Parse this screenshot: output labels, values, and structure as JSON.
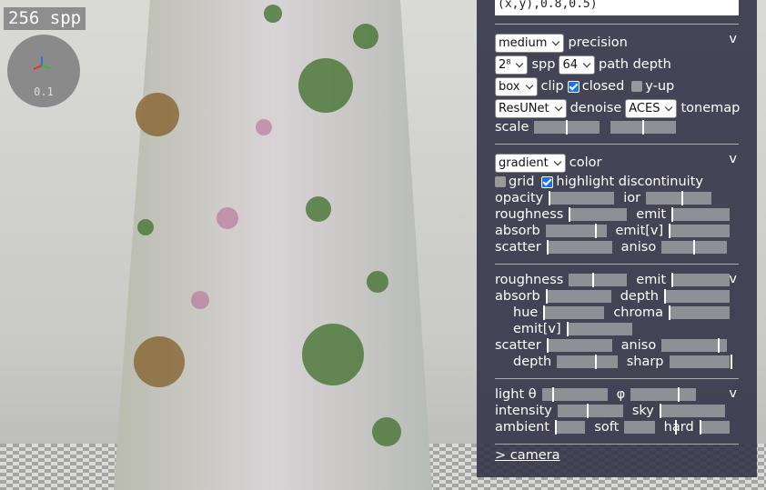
{
  "overlay": {
    "spp_badge": "256 spp",
    "gizmo_label": 0.1
  },
  "panel": {
    "expression_tail": "(x,y),0.8,0.5)",
    "sections": [
      {
        "toggle": "v",
        "rows": [
          {
            "items": [
              {
                "kind": "select",
                "value": "medium"
              },
              {
                "kind": "label",
                "text": "precision"
              }
            ]
          },
          {
            "items": [
              {
                "kind": "select",
                "value": "2⁸"
              },
              {
                "kind": "label",
                "text": "spp"
              },
              {
                "kind": "select",
                "value": 64
              },
              {
                "kind": "label",
                "text": "path depth"
              }
            ]
          },
          {
            "items": [
              {
                "kind": "select",
                "value": "box"
              },
              {
                "kind": "label",
                "text": "clip"
              },
              {
                "kind": "check",
                "checked": true,
                "text": "closed"
              },
              {
                "kind": "check",
                "checked": false,
                "text": "y-up"
              }
            ]
          },
          {
            "items": [
              {
                "kind": "select",
                "value": "ResUNet"
              },
              {
                "kind": "label",
                "text": "denoise"
              },
              {
                "kind": "select",
                "value": "ACES"
              },
              {
                "kind": "label",
                "text": "tonemap"
              }
            ]
          },
          {
            "items": [
              {
                "kind": "label",
                "text": "scale"
              },
              {
                "kind": "slider",
                "value": 0.5
              },
              {
                "kind": "slider",
                "value": 0.5
              }
            ]
          }
        ]
      },
      {
        "toggle": "v",
        "rows": [
          {
            "items": [
              {
                "kind": "select",
                "value": "gradient"
              },
              {
                "kind": "label",
                "text": "color"
              }
            ]
          },
          {
            "items": [
              {
                "kind": "check",
                "checked": false,
                "text": "grid"
              },
              {
                "kind": "check",
                "checked": true,
                "text": "highlight discontinuity"
              }
            ]
          },
          {
            "items": [
              {
                "kind": "label",
                "text": "opacity"
              },
              {
                "kind": "slider",
                "value": 0
              },
              {
                "kind": "label",
                "text": "ior"
              },
              {
                "kind": "slider",
                "value": 0.56
              }
            ]
          },
          {
            "items": [
              {
                "kind": "label",
                "text": "roughness"
              },
              {
                "kind": "slider",
                "value": 0
              },
              {
                "kind": "label",
                "text": "emit"
              },
              {
                "kind": "slider",
                "value": 0
              }
            ]
          },
          {
            "items": [
              {
                "kind": "label",
                "text": "absorb"
              },
              {
                "kind": "slider",
                "value": 0.78
              },
              {
                "kind": "label",
                "text": "emit[v]"
              },
              {
                "kind": "slider",
                "value": 0
              }
            ]
          },
          {
            "items": [
              {
                "kind": "label",
                "text": "scatter"
              },
              {
                "kind": "slider",
                "value": 0
              },
              {
                "kind": "label",
                "text": "aniso"
              },
              {
                "kind": "slider",
                "value": 0.5
              }
            ]
          }
        ]
      },
      {
        "toggle": "v",
        "rows": [
          {
            "items": [
              {
                "kind": "label",
                "text": "roughness"
              },
              {
                "kind": "slider",
                "value": 0.36
              },
              {
                "kind": "label",
                "text": "emit"
              },
              {
                "kind": "slider",
                "value": 0
              }
            ]
          },
          {
            "items": [
              {
                "kind": "label",
                "text": "absorb"
              },
              {
                "kind": "slider",
                "value": 0
              },
              {
                "kind": "label",
                "text": "depth"
              },
              {
                "kind": "slider",
                "value": 0
              }
            ]
          },
          {
            "indent": true,
            "items": [
              {
                "kind": "label",
                "text": "hue"
              },
              {
                "kind": "slider",
                "value": 0
              },
              {
                "kind": "label",
                "text": "chroma"
              },
              {
                "kind": "slider",
                "value": 0
              }
            ]
          },
          {
            "indent": true,
            "items": [
              {
                "kind": "label",
                "text": "emit[v]"
              },
              {
                "kind": "slider",
                "value": 0
              }
            ]
          },
          {
            "items": [
              {
                "kind": "label",
                "text": "scatter"
              },
              {
                "kind": "slider",
                "value": 0
              },
              {
                "kind": "label",
                "text": "aniso"
              },
              {
                "kind": "slider",
                "value": 0.88
              }
            ]
          },
          {
            "indent": true,
            "items": [
              {
                "kind": "label",
                "text": "depth"
              },
              {
                "kind": "slider",
                "value": 0.6
              },
              {
                "kind": "label",
                "text": "sharp"
              },
              {
                "kind": "slider",
                "value": 0.97
              }
            ]
          }
        ]
      },
      {
        "toggle": "v",
        "rows": [
          {
            "items": [
              {
                "kind": "label",
                "text": "light θ"
              },
              {
                "kind": "slider",
                "value": 0.16
              },
              {
                "kind": "label",
                "text": "φ"
              },
              {
                "kind": "slider",
                "value": 0.74
              }
            ]
          },
          {
            "items": [
              {
                "kind": "label",
                "text": "intensity"
              },
              {
                "kind": "slider",
                "value": 0.46
              },
              {
                "kind": "label",
                "text": "sky"
              },
              {
                "kind": "slider",
                "value": 0
              }
            ]
          },
          {
            "items": [
              {
                "kind": "label",
                "text": "ambient"
              },
              {
                "kind": "slider",
                "value": 0
              },
              {
                "kind": "label",
                "text": "soft"
              },
              {
                "kind": "slider",
                "value": 0.8
              },
              {
                "kind": "label",
                "text": "hard"
              },
              {
                "kind": "slider",
                "value": 0
              }
            ]
          }
        ]
      }
    ],
    "camera_link": "> camera"
  }
}
